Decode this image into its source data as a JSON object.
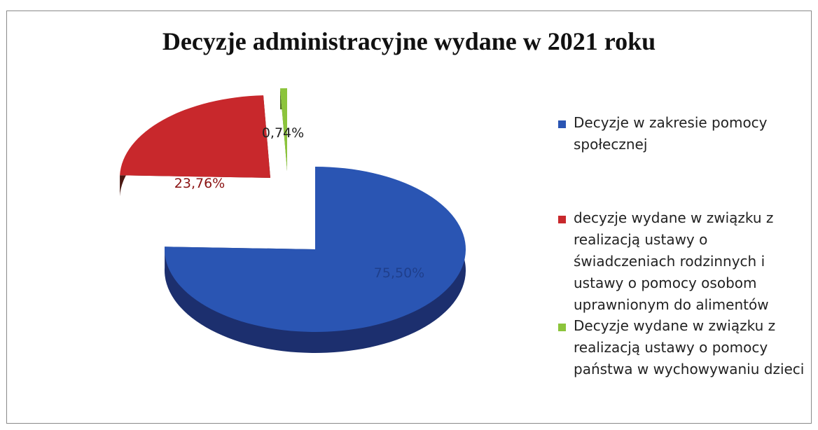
{
  "chart_data": {
    "type": "pie",
    "title": "Decyzje administracyjne wydane w 2021 roku",
    "series": [
      {
        "name": "Decyzje w zakresie pomocy społecznej",
        "value": 75.5,
        "label": "75,50%",
        "color": "#2a55b3"
      },
      {
        "name": "decyzje wydane w związku z realizacją ustawy o świadczeniach rodzinnych i ustawy o pomocy osobom uprawnionym do alimentów",
        "value": 23.76,
        "label": "23,76%",
        "color": "#c8282c"
      },
      {
        "name": "Decyzje wydane w związku z realizacją ustawy o pomocy państwa w wychowywaniu dzieci",
        "value": 0.74,
        "label": "0,74%",
        "color": "#8cc43c"
      }
    ],
    "legend_position": "right"
  }
}
